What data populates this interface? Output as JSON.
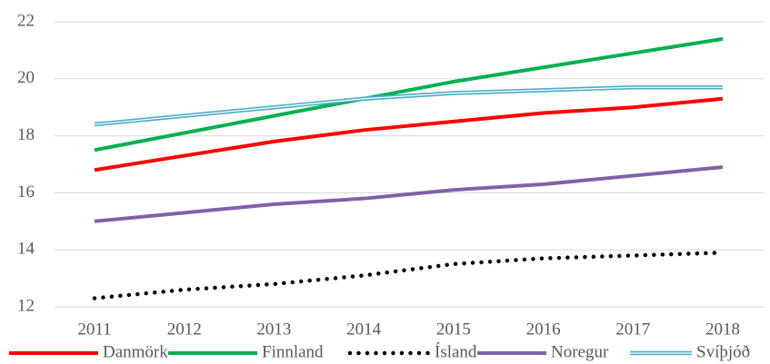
{
  "chart_data": {
    "type": "line",
    "x": [
      "2011",
      "2012",
      "2013",
      "2014",
      "2015",
      "2016",
      "2017",
      "2018"
    ],
    "ylim": [
      12,
      22
    ],
    "yticks": [
      12,
      14,
      16,
      18,
      20,
      22
    ],
    "grid": true,
    "legend": "bottom",
    "series": [
      {
        "name": "Danmörk",
        "color": "#ff0000",
        "style": "solid",
        "values": [
          16.8,
          17.3,
          17.8,
          18.2,
          18.5,
          18.8,
          19.0,
          19.3
        ]
      },
      {
        "name": "Finnland",
        "color": "#00b050",
        "style": "solid",
        "values": [
          17.5,
          18.1,
          18.7,
          19.3,
          19.9,
          20.4,
          20.9,
          21.4
        ]
      },
      {
        "name": "Ísland",
        "color": "#000000",
        "style": "dotted",
        "values": [
          12.3,
          12.6,
          12.8,
          13.1,
          13.5,
          13.7,
          13.8,
          13.9
        ]
      },
      {
        "name": "Noregur",
        "color": "#7f62a8",
        "style": "solid",
        "values": [
          15.0,
          15.3,
          15.6,
          15.8,
          16.1,
          16.3,
          16.6,
          16.9
        ]
      },
      {
        "name": "Svíþjóð",
        "color": "#4bacc6",
        "style": "double",
        "values": [
          18.4,
          18.7,
          19.0,
          19.3,
          19.5,
          19.6,
          19.7,
          19.7
        ]
      }
    ]
  }
}
